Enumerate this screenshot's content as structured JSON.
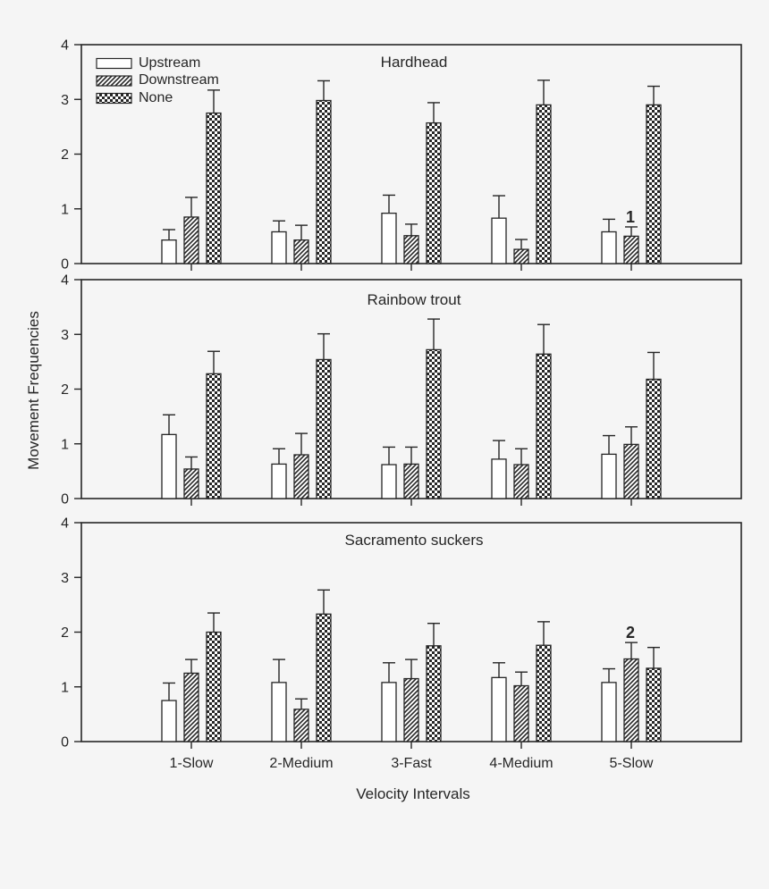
{
  "figure": {
    "y_axis_title": "Movement Frequencies",
    "x_axis_title": "Velocity Intervals",
    "ink_color": "#262626",
    "background_color": "#f5f5f5",
    "bar_fill_color": "#ffffff"
  },
  "legend": {
    "position": "top-left inside first panel",
    "items": [
      {
        "label": "Upstream",
        "pattern": "solid-white"
      },
      {
        "label": "Downstream",
        "pattern": "diagonal-hatch"
      },
      {
        "label": "None",
        "pattern": "checkerboard"
      }
    ]
  },
  "chart_data": {
    "type": "bar",
    "categories": [
      "1-Slow",
      "2-Medium",
      "3-Fast",
      "4-Medium",
      "5-Slow"
    ],
    "xlabel": "Velocity Intervals",
    "ylabel": "Movement Frequencies",
    "ylim": [
      0,
      4
    ],
    "yticks": [
      0,
      1,
      2,
      3,
      4
    ],
    "grid": false,
    "error_bars": "upper, capped",
    "panels": [
      {
        "title": "Hardhead",
        "series": [
          {
            "name": "Upstream",
            "values": [
              0.43,
              0.58,
              0.92,
              0.83,
              0.58
            ],
            "errors": [
              0.19,
              0.2,
              0.33,
              0.41,
              0.23
            ]
          },
          {
            "name": "Downstream",
            "values": [
              0.85,
              0.43,
              0.51,
              0.26,
              0.5
            ],
            "errors": [
              0.36,
              0.27,
              0.21,
              0.18,
              0.17
            ]
          },
          {
            "name": "None",
            "values": [
              2.75,
              2.98,
              2.57,
              2.9,
              2.9
            ],
            "errors": [
              0.42,
              0.36,
              0.37,
              0.45,
              0.34
            ]
          }
        ],
        "annotations": [
          {
            "text": "1",
            "category_index": 4,
            "series_index": 1
          }
        ]
      },
      {
        "title": "Rainbow trout",
        "series": [
          {
            "name": "Upstream",
            "values": [
              1.17,
              0.63,
              0.62,
              0.72,
              0.81
            ],
            "errors": [
              0.36,
              0.28,
              0.32,
              0.34,
              0.34
            ]
          },
          {
            "name": "Downstream",
            "values": [
              0.54,
              0.8,
              0.63,
              0.62,
              0.99
            ],
            "errors": [
              0.22,
              0.39,
              0.31,
              0.29,
              0.32
            ]
          },
          {
            "name": "None",
            "values": [
              2.28,
              2.54,
              2.72,
              2.64,
              2.18
            ],
            "errors": [
              0.41,
              0.47,
              0.56,
              0.54,
              0.49
            ]
          }
        ],
        "annotations": []
      },
      {
        "title": "Sacramento suckers",
        "series": [
          {
            "name": "Upstream",
            "values": [
              0.75,
              1.08,
              1.08,
              1.17,
              1.08
            ],
            "errors": [
              0.32,
              0.42,
              0.36,
              0.27,
              0.25
            ]
          },
          {
            "name": "Downstream",
            "values": [
              1.25,
              0.59,
              1.15,
              1.02,
              1.51
            ],
            "errors": [
              0.25,
              0.19,
              0.35,
              0.25,
              0.3
            ]
          },
          {
            "name": "None",
            "values": [
              2.0,
              2.33,
              1.75,
              1.76,
              1.34
            ],
            "errors": [
              0.35,
              0.44,
              0.41,
              0.43,
              0.38
            ]
          }
        ],
        "annotations": [
          {
            "text": "2",
            "category_index": 4,
            "series_index": 1
          }
        ]
      }
    ]
  }
}
